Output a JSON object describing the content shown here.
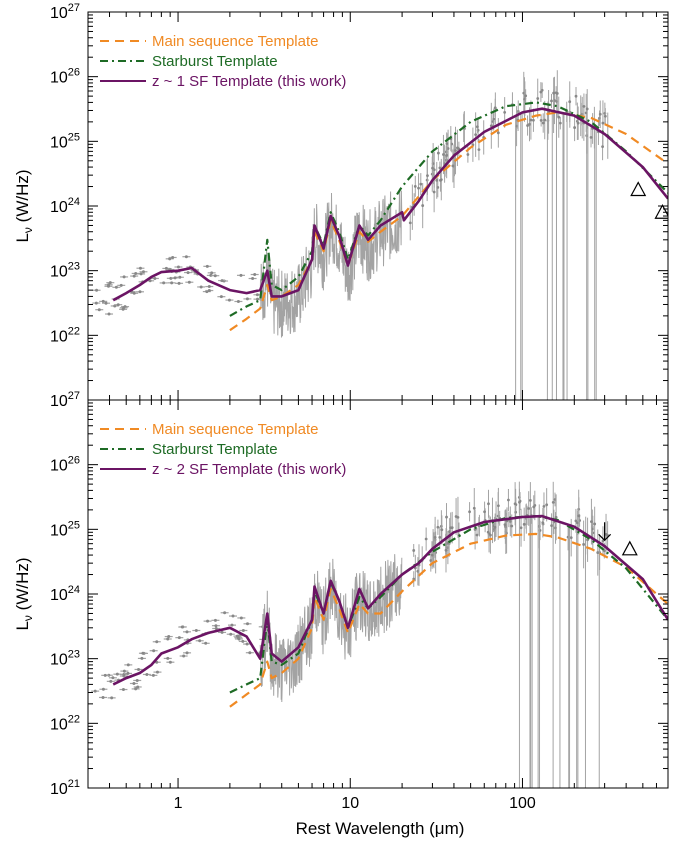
{
  "figure": {
    "xlabel": "Rest Wavelength (μm)",
    "ylabel": "Lν (W/Hz)",
    "ylabel_main": "L",
    "ylabel_sub": "ν",
    "ylabel_unit": " (W/Hz)"
  },
  "colors": {
    "main_sequence": "#f08a24",
    "starburst": "#1e6b25",
    "sf_template": "#6b1464",
    "observed": "#a3a3a3",
    "axis": "#000000"
  },
  "chart_data": [
    {
      "type": "line",
      "panel": "top",
      "xscale": "log",
      "yscale": "log",
      "xlim": [
        0.3,
        700
      ],
      "ylim": [
        1e+21,
        1e+27
      ],
      "x_ticks": [
        1,
        10,
        100
      ],
      "x_tick_labels": [
        "1",
        "10",
        "100"
      ],
      "y_ticks": [
        1e+22,
        1e+23,
        1e+24,
        1e+25,
        1e+26,
        1e+27
      ],
      "y_tick_labels": [
        [
          "10",
          "22"
        ],
        [
          "10",
          "23"
        ],
        [
          "10",
          "24"
        ],
        [
          "10",
          "25"
        ],
        [
          "10",
          "26"
        ],
        [
          "10",
          "27"
        ]
      ],
      "legend": {
        "placement": "top-left",
        "entries": [
          {
            "label": "Main sequence Template",
            "color": "#f08a24",
            "style": "dashed"
          },
          {
            "label": "Starburst Template",
            "color": "#1e6b25",
            "style": "dashdot"
          },
          {
            "label": "z ~ 1 SF Template (this work)",
            "color": "#6b1464",
            "style": "solid"
          }
        ]
      },
      "series": [
        {
          "name": "Main sequence Template",
          "style": "dashed",
          "x": [
            2,
            2.5,
            3,
            3.3,
            3.5,
            4,
            5,
            6,
            6.2,
            7,
            7.7,
            8.6,
            9.7,
            11.3,
            12.7,
            15,
            20,
            30,
            50,
            80,
            120,
            160,
            250,
            400,
            700
          ],
          "y": [
            1.2e+22,
            1.8e+22,
            2.6e+22,
            6e+22,
            3.5e+22,
            4e+22,
            6e+22,
            1.5e+23,
            4e+23,
            2e+23,
            6e+23,
            3e+23,
            1.2e+23,
            4e+23,
            2.8e+23,
            4e+23,
            7e+23,
            2.5e+24,
            8e+24,
            1.8e+25,
            2.5e+25,
            2.8e+25,
            2.3e+25,
            1.3e+25,
            4.5e+24
          ]
        },
        {
          "name": "Starburst Template",
          "style": "dashdot",
          "x": [
            2,
            2.5,
            3,
            3.3,
            3.5,
            4,
            5,
            6,
            6.2,
            7,
            7.7,
            8.6,
            9.7,
            11.3,
            12.7,
            15,
            20,
            30,
            50,
            80,
            120,
            160,
            250,
            400,
            700
          ],
          "y": [
            2e+22,
            2.8e+22,
            3.5e+22,
            3e+23,
            6e+22,
            5e+22,
            8e+22,
            2e+23,
            5e+23,
            2.5e+23,
            8e+23,
            4e+23,
            1.5e+23,
            5e+23,
            3.5e+23,
            6e+23,
            2e+24,
            7e+24,
            2e+25,
            3.5e+25,
            4e+25,
            3.5e+25,
            2e+25,
            7e+24,
            1.6e+24
          ]
        },
        {
          "name": "z ~ 1 SF Template (this work)",
          "style": "solid",
          "x": [
            0.42,
            0.5,
            0.6,
            0.7,
            0.8,
            1,
            1.2,
            1.5,
            2,
            2.5,
            3,
            3.3,
            3.5,
            4,
            5,
            6,
            6.2,
            7,
            7.7,
            8.6,
            9.7,
            11.3,
            12.7,
            15,
            20,
            20.5,
            25,
            30,
            40,
            60,
            100,
            130,
            200,
            300,
            500,
            700
          ],
          "y": [
            3.5e+22,
            4.5e+22,
            6e+22,
            8e+22,
            9.5e+22,
            1e+23,
            1.1e+23,
            7e+22,
            5e+22,
            4.5e+22,
            5e+22,
            1e+23,
            4e+22,
            4e+22,
            5e+22,
            1.5e+23,
            5e+23,
            2.2e+23,
            7e+23,
            3.5e+23,
            1.2e+23,
            5e+23,
            3e+23,
            5e+23,
            8e+23,
            6e+23,
            1.2e+24,
            2.5e+24,
            6e+24,
            1.4e+25,
            2.8e+25,
            3.2e+25,
            2.5e+25,
            1.3e+25,
            4e+24,
            1.3e+24
          ]
        }
      ],
      "upper_limit_points": {
        "x": [],
        "y": []
      },
      "triangle_points": {
        "x": [
          470,
          650
        ],
        "y": [
          1.8e+24,
          8e+23
        ]
      }
    },
    {
      "type": "line",
      "panel": "bottom",
      "xscale": "log",
      "yscale": "log",
      "xlim": [
        0.3,
        700
      ],
      "ylim": [
        1e+21,
        1e+27
      ],
      "x_ticks": [
        1,
        10,
        100
      ],
      "x_tick_labels": [
        "1",
        "10",
        "100"
      ],
      "y_ticks": [
        1e+21,
        1e+22,
        1e+23,
        1e+24,
        1e+25,
        1e+26,
        1e+27
      ],
      "y_tick_labels": [
        [
          "10",
          "21"
        ],
        [
          "10",
          "22"
        ],
        [
          "10",
          "23"
        ],
        [
          "10",
          "24"
        ],
        [
          "10",
          "25"
        ],
        [
          "10",
          "26"
        ],
        [
          "10",
          "27"
        ]
      ],
      "legend": {
        "placement": "top-left",
        "entries": [
          {
            "label": "Main sequence Template",
            "color": "#f08a24",
            "style": "dashed"
          },
          {
            "label": "Starburst Template",
            "color": "#1e6b25",
            "style": "dashdot"
          },
          {
            "label": "z ~ 2 SF Template (this work)",
            "color": "#6b1464",
            "style": "solid"
          }
        ]
      },
      "series": [
        {
          "name": "Main sequence Template",
          "style": "dashed",
          "x": [
            2,
            2.5,
            3,
            3.3,
            3.5,
            4,
            5,
            6,
            6.2,
            7,
            7.7,
            8.6,
            9.7,
            11.3,
            12.7,
            15,
            20,
            30,
            50,
            80,
            120,
            160,
            250,
            400,
            700
          ],
          "y": [
            1.8e+22,
            2.8e+22,
            4e+22,
            9e+22,
            5e+22,
            6e+22,
            1e+23,
            3e+23,
            9e+23,
            4e+23,
            1.2e+24,
            6e+23,
            2.5e+23,
            7e+23,
            5e+23,
            5e+23,
            1.1e+24,
            3e+24,
            6e+24,
            8e+24,
            8.5e+24,
            7.5e+24,
            5e+24,
            2.6e+24,
            7e+23
          ]
        },
        {
          "name": "Starburst Template",
          "style": "dashdot",
          "x": [
            2,
            2.5,
            3,
            3.3,
            3.5,
            4,
            5,
            6,
            6.2,
            7,
            7.7,
            8.6,
            9.7,
            11.3,
            12.7,
            15,
            20,
            30,
            50,
            80,
            120,
            160,
            250,
            400,
            700
          ],
          "y": [
            3e+22,
            4e+22,
            5e+22,
            4e+23,
            9e+22,
            8e+22,
            1.2e+23,
            4e+23,
            1.1e+24,
            5e+23,
            1.5e+24,
            8e+23,
            3e+23,
            9e+23,
            6e+23,
            9e+23,
            2e+24,
            4.5e+24,
            1e+25,
            1.5e+25,
            1.6e+25,
            1.4e+25,
            7e+24,
            2.5e+24,
            4e+23
          ]
        },
        {
          "name": "z ~ 2 SF Template (this work)",
          "style": "solid",
          "x": [
            0.42,
            0.5,
            0.6,
            0.7,
            0.8,
            1,
            1.2,
            1.5,
            2,
            2.5,
            3,
            3.3,
            3.5,
            4,
            5,
            6,
            6.2,
            7,
            7.7,
            8.6,
            9.7,
            11.3,
            12.7,
            15,
            20,
            25,
            30,
            40,
            60,
            100,
            130,
            200,
            300,
            500,
            700
          ],
          "y": [
            4e+22,
            5e+22,
            6e+22,
            8e+22,
            1.2e+23,
            1.5e+23,
            2e+23,
            2.5e+23,
            3e+23,
            2.2e+23,
            1e+23,
            5e+23,
            1.2e+23,
            9e+22,
            1.5e+23,
            4e+23,
            1.3e+24,
            5e+23,
            1.6e+24,
            8e+23,
            3e+23,
            1.2e+24,
            6e+23,
            1e+24,
            2e+24,
            3e+24,
            5e+24,
            9e+24,
            1.3e+25,
            1.55e+25,
            1.6e+25,
            1.1e+25,
            5.5e+24,
            1.7e+24,
            4e+23
          ]
        }
      ],
      "upper_limit_points": {
        "x": [
          300
        ],
        "y": [
          9e+24
        ]
      },
      "triangle_points": {
        "x": [
          420
        ],
        "y": [
          5e+24
        ]
      }
    }
  ]
}
